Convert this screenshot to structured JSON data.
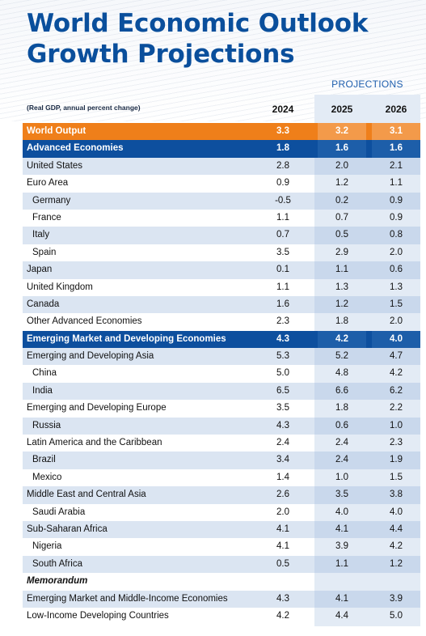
{
  "title": {
    "line1": "World Economic Outlook",
    "line2": "Growth Projections"
  },
  "projections_label": "PROJECTIONS",
  "note": "(Real GDP, annual percent change)",
  "years": [
    "2024",
    "2025",
    "2026"
  ],
  "colors": {
    "orange": "#ef7f1a",
    "blue": "#0d4f9e",
    "light_blue": "#dbe5f2",
    "projection_bg": "#e3ebf5",
    "title": "#0a4f9c"
  },
  "rows": [
    {
      "label": "World Output",
      "v": [
        "3.3",
        "3.2",
        "3.1"
      ]
    },
    {
      "label": "Advanced Economies",
      "v": [
        "1.8",
        "1.6",
        "1.6"
      ]
    },
    {
      "label": "United States",
      "v": [
        "2.8",
        "2.0",
        "2.1"
      ]
    },
    {
      "label": "Euro Area",
      "v": [
        "0.9",
        "1.2",
        "1.1"
      ]
    },
    {
      "label": "Germany",
      "v": [
        "-0.5",
        "0.2",
        "0.9"
      ]
    },
    {
      "label": "France",
      "v": [
        "1.1",
        "0.7",
        "0.9"
      ]
    },
    {
      "label": "Italy",
      "v": [
        "0.7",
        "0.5",
        "0.8"
      ]
    },
    {
      "label": "Spain",
      "v": [
        "3.5",
        "2.9",
        "2.0"
      ]
    },
    {
      "label": "Japan",
      "v": [
        "0.1",
        "1.1",
        "0.6"
      ]
    },
    {
      "label": "United Kingdom",
      "v": [
        "1.1",
        "1.3",
        "1.3"
      ]
    },
    {
      "label": "Canada",
      "v": [
        "1.6",
        "1.2",
        "1.5"
      ]
    },
    {
      "label": "Other Advanced Economies",
      "v": [
        "2.3",
        "1.8",
        "2.0"
      ]
    },
    {
      "label": "Emerging Market and Developing Economies",
      "v": [
        "4.3",
        "4.2",
        "4.0"
      ]
    },
    {
      "label": "Emerging and Developing Asia",
      "v": [
        "5.3",
        "5.2",
        "4.7"
      ]
    },
    {
      "label": "China",
      "v": [
        "5.0",
        "4.8",
        "4.2"
      ]
    },
    {
      "label": "India",
      "v": [
        "6.5",
        "6.6",
        "6.2"
      ]
    },
    {
      "label": "Emerging and Developing Europe",
      "v": [
        "3.5",
        "1.8",
        "2.2"
      ]
    },
    {
      "label": "Russia",
      "v": [
        "4.3",
        "0.6",
        "1.0"
      ]
    },
    {
      "label": "Latin America and the Caribbean",
      "v": [
        "2.4",
        "2.4",
        "2.3"
      ]
    },
    {
      "label": "Brazil",
      "v": [
        "3.4",
        "2.4",
        "1.9"
      ]
    },
    {
      "label": "Mexico",
      "v": [
        "1.4",
        "1.0",
        "1.5"
      ]
    },
    {
      "label": "Middle East and Central Asia",
      "v": [
        "2.6",
        "3.5",
        "3.8"
      ]
    },
    {
      "label": "Saudi Arabia",
      "v": [
        "2.0",
        "4.0",
        "4.0"
      ]
    },
    {
      "label": "Sub-Saharan Africa",
      "v": [
        "4.1",
        "4.1",
        "4.4"
      ]
    },
    {
      "label": "Nigeria",
      "v": [
        "4.1",
        "3.9",
        "4.2"
      ]
    },
    {
      "label": "South Africa",
      "v": [
        "0.5",
        "1.1",
        "1.2"
      ]
    },
    {
      "label": "Memorandum",
      "v": [
        "",
        "",
        ""
      ]
    },
    {
      "label": "Emerging Market and Middle-Income Economies",
      "v": [
        "4.3",
        "4.1",
        "3.9"
      ]
    },
    {
      "label": "Low-Income Developing Countries",
      "v": [
        "4.2",
        "4.4",
        "5.0"
      ]
    }
  ]
}
